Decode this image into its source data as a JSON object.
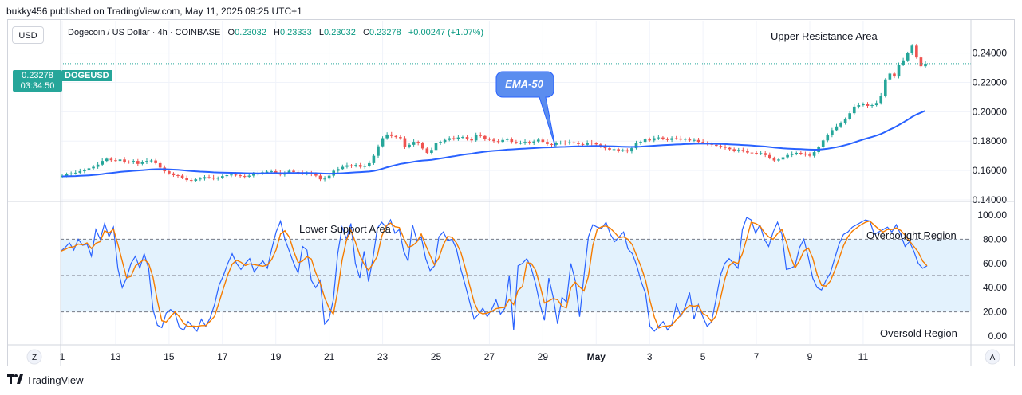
{
  "header": {
    "published": "bukky456 published on TradingView.com, May 11, 2025 09:25 UTC+1"
  },
  "toolbar": {
    "currency": "USD",
    "zoom_left": "Z",
    "zoom_right": "A"
  },
  "legend": {
    "symbol": "Dogecoin / US Dollar · 4h · COINBASE",
    "open_label": "O",
    "open": "0.23032",
    "high_label": "H",
    "high": "0.23333",
    "low_label": "L",
    "low": "0.23032",
    "close_label": "C",
    "close": "0.23278",
    "change": "+0.00247 (+1.07%)"
  },
  "price_marker": {
    "price": "0.23278",
    "countdown": "03:34:50",
    "symbol": "DOGEUSD"
  },
  "annotations": {
    "ema_callout": "EMA-50",
    "upper_resistance": "Upper Resistance Area",
    "lower_support": "Lower Support Area",
    "overbought": "Overbought Region",
    "oversold": "Oversold Region"
  },
  "footer": {
    "brand": "TradingView"
  },
  "colors": {
    "bull": "#26a69a",
    "bear": "#ef5350",
    "ema": "#2962ff",
    "stoch_k": "#2962ff",
    "stoch_d": "#f57c00",
    "band_fill": "#e3f2fd"
  },
  "chart_data": [
    {
      "type": "candlestick",
      "pane": "price",
      "ylim": [
        0.14,
        0.262
      ],
      "y_ticks": [
        "0.24000",
        "0.22000",
        "0.20000",
        "0.18000",
        "0.16000",
        "0.14000"
      ],
      "y_tick_values": [
        0.24,
        0.22,
        0.2,
        0.18,
        0.16,
        0.14
      ],
      "x_ticks": [
        "1",
        "13",
        "15",
        "17",
        "19",
        "21",
        "23",
        "25",
        "27",
        "29",
        "May",
        "3",
        "5",
        "7",
        "9",
        "11"
      ],
      "candles_per_tick": 12,
      "close": [
        0.1565,
        0.1575,
        0.158,
        0.1585,
        0.1595,
        0.1605,
        0.1615,
        0.1625,
        0.164,
        0.1665,
        0.168,
        0.167,
        0.1665,
        0.1675,
        0.166,
        0.1655,
        0.1665,
        0.1645,
        0.1655,
        0.1665,
        0.1668,
        0.165,
        0.162,
        0.1595,
        0.158,
        0.1568,
        0.1565,
        0.155,
        0.1535,
        0.153,
        0.154,
        0.1545,
        0.1555,
        0.1552,
        0.1545,
        0.155,
        0.1562,
        0.1568,
        0.1572,
        0.1568,
        0.1562,
        0.1558,
        0.1565,
        0.1575,
        0.1578,
        0.1588,
        0.1592,
        0.1595,
        0.1585,
        0.1572,
        0.1585,
        0.1598,
        0.159,
        0.1582,
        0.1578,
        0.1585,
        0.1575,
        0.1565,
        0.154,
        0.1545,
        0.1565,
        0.1598,
        0.161,
        0.1625,
        0.1635,
        0.163,
        0.1638,
        0.1625,
        0.163,
        0.165,
        0.17,
        0.1765,
        0.182,
        0.1845,
        0.1835,
        0.1828,
        0.182,
        0.176,
        0.1775,
        0.1795,
        0.1785,
        0.175,
        0.172,
        0.174,
        0.1785,
        0.1795,
        0.1808,
        0.182,
        0.1815,
        0.1825,
        0.1828,
        0.1815,
        0.1805,
        0.1842,
        0.1835,
        0.1815,
        0.181,
        0.18,
        0.1795,
        0.1808,
        0.1815,
        0.1795,
        0.1788,
        0.1788,
        0.1795,
        0.1785,
        0.1798,
        0.181,
        0.1795,
        0.178,
        0.1775,
        0.1788,
        0.179,
        0.1785,
        0.1792,
        0.179,
        0.178,
        0.1775,
        0.179,
        0.1785,
        0.1778,
        0.1765,
        0.1752,
        0.1742,
        0.1745,
        0.1735,
        0.1738,
        0.173,
        0.1752,
        0.1785,
        0.1795,
        0.1812,
        0.1805,
        0.182,
        0.1825,
        0.1815,
        0.1808,
        0.182,
        0.1818,
        0.181,
        0.1815,
        0.1805,
        0.1808,
        0.1795,
        0.179,
        0.1782,
        0.1775,
        0.1768,
        0.176,
        0.1755,
        0.1745,
        0.1735,
        0.174,
        0.1732,
        0.1722,
        0.172,
        0.1715,
        0.1718,
        0.1705,
        0.1685,
        0.1668,
        0.1675,
        0.169,
        0.1705,
        0.1712,
        0.172,
        0.1715,
        0.1708,
        0.17,
        0.1725,
        0.176,
        0.1805,
        0.184,
        0.1875,
        0.19,
        0.1925,
        0.195,
        0.199,
        0.2035,
        0.2045,
        0.2055,
        0.204,
        0.2045,
        0.206,
        0.211,
        0.222,
        0.226,
        0.224,
        0.232,
        0.235,
        0.24,
        0.245,
        0.237,
        0.231,
        0.23278
      ]
    },
    {
      "type": "line",
      "pane": "price",
      "name": "EMA-50",
      "note": "50-period EMA computed from close series"
    },
    {
      "type": "line",
      "pane": "stochastic",
      "ylim": [
        0,
        100
      ],
      "y_ticks": [
        "100.00",
        "80.00",
        "60.00",
        "40.00",
        "20.00",
        "0.00"
      ],
      "y_tick_values": [
        100,
        80,
        60,
        40,
        20,
        0
      ],
      "bands": [
        20,
        50,
        80
      ],
      "k": [
        70,
        73,
        77,
        71,
        80,
        75,
        76,
        66,
        88,
        80,
        93,
        82,
        90,
        56,
        40,
        48,
        60,
        66,
        56,
        68,
        56,
        22,
        9,
        7,
        19,
        22,
        19,
        7,
        5,
        12,
        8,
        4,
        14,
        8,
        15,
        26,
        42,
        50,
        60,
        68,
        60,
        55,
        60,
        64,
        53,
        58,
        62,
        56,
        72,
        86,
        95,
        80,
        70,
        60,
        52,
        74,
        71,
        46,
        40,
        46,
        10,
        14,
        30,
        68,
        90,
        80,
        93,
        60,
        48,
        70,
        45,
        64,
        89,
        94,
        90,
        96,
        85,
        88,
        70,
        62,
        92,
        79,
        82,
        64,
        54,
        58,
        82,
        86,
        79,
        80,
        72,
        55,
        42,
        28,
        14,
        18,
        23,
        16,
        22,
        30,
        18,
        23,
        50,
        5,
        58,
        60,
        64,
        56,
        43,
        26,
        13,
        48,
        32,
        10,
        32,
        28,
        60,
        46,
        16,
        50,
        82,
        92,
        90,
        89,
        94,
        84,
        78,
        82,
        86,
        72,
        68,
        58,
        45,
        35,
        8,
        4,
        8,
        12,
        5,
        10,
        26,
        16,
        24,
        36,
        14,
        26,
        16,
        8,
        12,
        30,
        50,
        60,
        64,
        60,
        56,
        88,
        98,
        96,
        85,
        92,
        80,
        74,
        86,
        94,
        84,
        55,
        56,
        58,
        73,
        80,
        65,
        48,
        40,
        38,
        46,
        52,
        64,
        76,
        84,
        86,
        90,
        92,
        94,
        96,
        95,
        84,
        86,
        88,
        90,
        86,
        92,
        84,
        74,
        78,
        70,
        60,
        56,
        58
      ]
    }
  ]
}
